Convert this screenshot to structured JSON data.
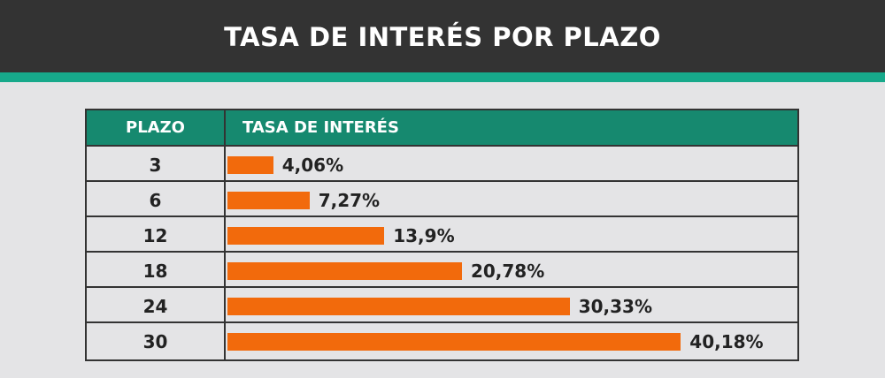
{
  "header": {
    "title": "TASA DE INTERÉS POR PLAZO"
  },
  "colors": {
    "header_bg": "#333333",
    "accent": "#17a98b",
    "table_header_bg": "#16896f",
    "bar": "#f26a0c",
    "background": "#e4e4e6"
  },
  "table": {
    "col_plazo": "PLAZO",
    "col_tasa": "TASA DE INTERÉS"
  },
  "chart_data": {
    "type": "bar",
    "orientation": "horizontal",
    "categories": [
      "3",
      "6",
      "12",
      "18",
      "24",
      "30"
    ],
    "values": [
      4.06,
      7.27,
      13.9,
      20.78,
      30.33,
      40.18
    ],
    "value_labels": [
      "4,06%",
      "7,27%",
      "13,9%",
      "20,78%",
      "30,33%",
      "40,18%"
    ],
    "title": "TASA DE INTERÉS POR PLAZO",
    "xlabel": "TASA DE INTERÉS",
    "ylabel": "PLAZO",
    "grid": false
  }
}
